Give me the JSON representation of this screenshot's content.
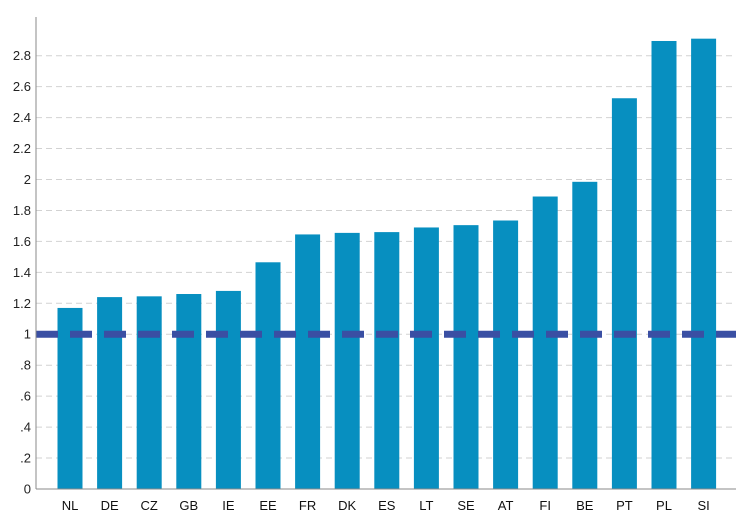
{
  "chart_data": {
    "type": "bar",
    "categories": [
      "NL",
      "DE",
      "CZ",
      "GB",
      "IE",
      "EE",
      "FR",
      "DK",
      "ES",
      "LT",
      "SE",
      "AT",
      "FI",
      "BE",
      "PT",
      "PL",
      "SI"
    ],
    "values": [
      1.17,
      1.24,
      1.245,
      1.26,
      1.28,
      1.465,
      1.645,
      1.655,
      1.66,
      1.69,
      1.705,
      1.735,
      1.89,
      1.985,
      2.525,
      2.895,
      2.91
    ],
    "ylim": [
      0,
      3.05
    ],
    "yticks": [
      0,
      0.2,
      0.4,
      0.6,
      0.8,
      1,
      1.2,
      1.4,
      1.6,
      1.8,
      2,
      2.2,
      2.4,
      2.6,
      2.8
    ],
    "ytick_labels": [
      "0",
      ".2",
      ".4",
      ".6",
      ".8",
      "1",
      "1.2",
      "1.4",
      "1.6",
      "1.8",
      "2",
      "2.2",
      "2.4",
      "2.6",
      "2.8"
    ],
    "reference_line": 1,
    "grid": true,
    "colors": {
      "bar": "#078fc0",
      "reference_line": "#3a4fa3",
      "grid": "#d2d2d2",
      "axis": "#8a8a8a"
    }
  }
}
